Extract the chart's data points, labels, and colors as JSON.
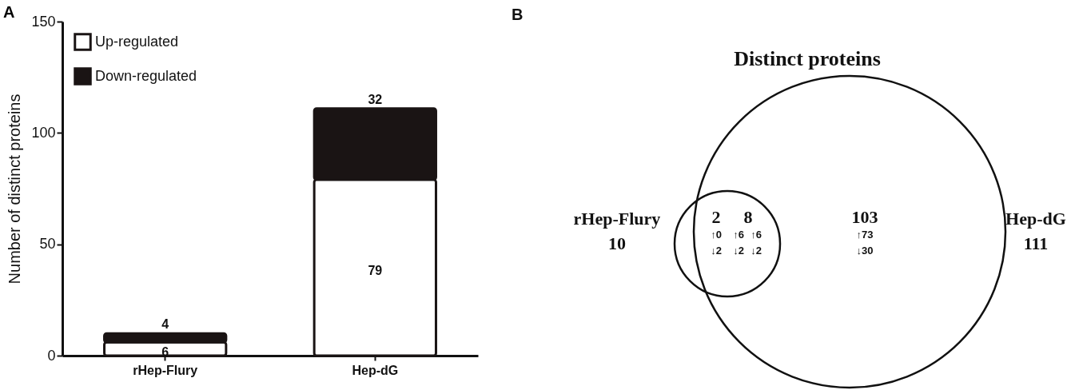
{
  "chart_data": [
    {
      "type": "bar",
      "stacked": true,
      "categories": [
        "rHep-Flury",
        "Hep-dG"
      ],
      "ylabel": "Number of distinct proteins",
      "ylim": [
        0,
        150
      ],
      "yticks": [
        0,
        50,
        100,
        150
      ],
      "legend": "top left",
      "data_labels": true,
      "annotations": [
        "A"
      ],
      "series": [
        {
          "name": "Up-regulated",
          "color": "#ffffff",
          "values": [
            6,
            79
          ]
        },
        {
          "name": "Down-regulated",
          "color": "#1a1414",
          "values": [
            4,
            32
          ]
        }
      ]
    },
    {
      "type": "other",
      "title": "Distinct proteins",
      "annotations": [
        "B",
        "rHep-Flury",
        "10",
        "Hep-dG",
        "111",
        "2",
        "↑0",
        "↓2",
        "8",
        "↑6",
        "↑6",
        "↓2",
        "↓2",
        "103",
        "↑73",
        "↓30"
      ]
    }
  ]
}
